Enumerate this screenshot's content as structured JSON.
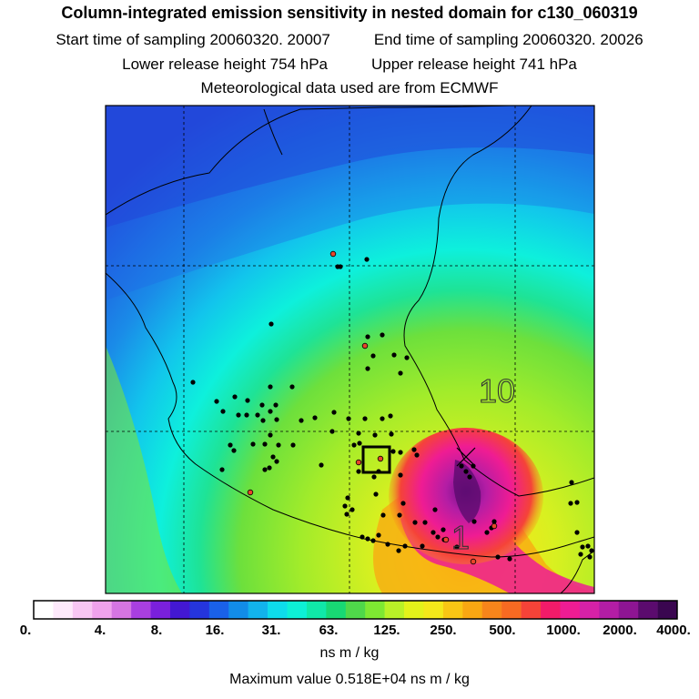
{
  "header": {
    "title": "Column-integrated emission sensitivity in nested domain for c130_060319",
    "start_time": "Start time of sampling 20060320. 20007",
    "end_time": "End time of sampling 20060320. 20026",
    "lower_height": "Lower release height  754 hPa",
    "upper_height": "Upper release height  741 hPa",
    "met_source": "Meteorological data used are from ECMWF"
  },
  "map": {
    "contour_labels": [
      "10",
      "1"
    ]
  },
  "colorbar": {
    "colors": [
      "#ffffff",
      "#fde9fb",
      "#f7c6f3",
      "#efa2ec",
      "#d575e2",
      "#a93fe0",
      "#7a20dc",
      "#4318d2",
      "#2535dd",
      "#1a61e8",
      "#128ce8",
      "#12b3ec",
      "#0edceb",
      "#0df0d6",
      "#10e8a8",
      "#18d874",
      "#4fd84a",
      "#7ee832",
      "#b9f127",
      "#e3f21a",
      "#f4e81a",
      "#f9c614",
      "#f9a712",
      "#f7851b",
      "#f76a22",
      "#f54338",
      "#f21b69",
      "#ef1c93",
      "#d621a7",
      "#b31da5",
      "#8e1593",
      "#5b0b6e",
      "#3a0650"
    ],
    "labels": [
      "0.",
      "4.",
      "8.",
      "16.",
      "31.",
      "63.",
      "125.",
      "250.",
      "500.",
      "1000.",
      "2000.",
      "4000."
    ]
  },
  "units": "ns m / kg",
  "max_value": "Maximum value  0.518E+04 ns m / kg"
}
